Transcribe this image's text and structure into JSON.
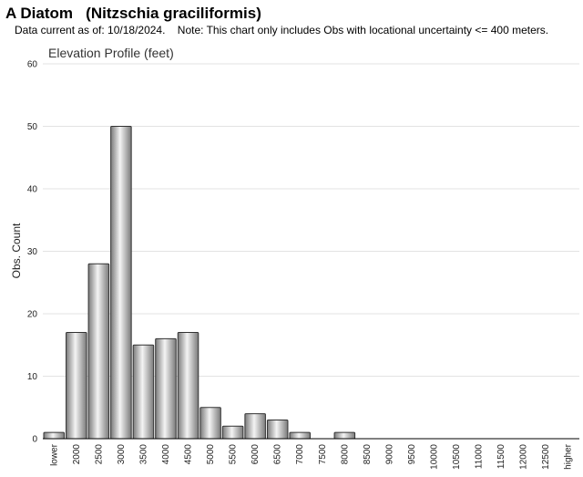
{
  "header": {
    "title": "A Diatom   (Nitzschia graciliformis)",
    "subtitle": "Data current as of: 10/18/2024.    Note: This chart only includes Obs with locational uncertainty <= 400 meters."
  },
  "chart_data": {
    "type": "bar",
    "title": "Elevation Profile (feet)",
    "xlabel": "",
    "ylabel": "Obs. Count",
    "ylim": [
      0,
      60
    ],
    "yticks": [
      0,
      10,
      20,
      30,
      40,
      50,
      60
    ],
    "grid": true,
    "categories": [
      "lower",
      "2000",
      "2500",
      "3000",
      "3500",
      "4000",
      "4500",
      "5000",
      "5500",
      "6000",
      "6500",
      "7000",
      "7500",
      "8000",
      "8500",
      "9000",
      "9500",
      "10000",
      "10500",
      "11000",
      "11500",
      "12000",
      "12500",
      "higher"
    ],
    "values": [
      1,
      17,
      28,
      50,
      15,
      16,
      17,
      5,
      2,
      4,
      3,
      1,
      0,
      1,
      0,
      0,
      0,
      0,
      0,
      0,
      0,
      0,
      0,
      0
    ],
    "colors": {
      "bar_light": "#f4f4f4",
      "bar_dark": "#7a7a7a",
      "bar_stroke": "#333333",
      "grid": "#e3e3e3",
      "axis": "#000000"
    }
  }
}
